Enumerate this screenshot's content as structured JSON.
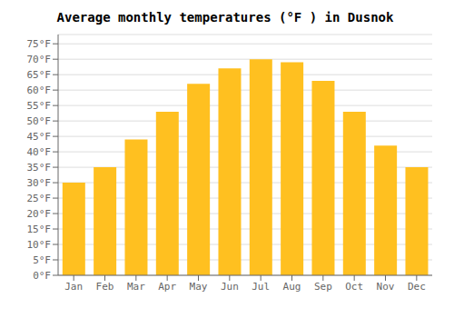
{
  "chart_data": {
    "type": "bar",
    "title": "Average monthly temperatures (°F ) in Dusnok",
    "categories": [
      "Jan",
      "Feb",
      "Mar",
      "Apr",
      "May",
      "Jun",
      "Jul",
      "Aug",
      "Sep",
      "Oct",
      "Nov",
      "Dec"
    ],
    "values": [
      30,
      35,
      44,
      53,
      62,
      67,
      70,
      69,
      63,
      53,
      42,
      35
    ],
    "color": "#FFC020",
    "ylim": [
      0,
      78
    ],
    "yticks": [
      {
        "value": 0,
        "label": "0°F"
      },
      {
        "value": 5,
        "label": "5°F"
      },
      {
        "value": 10,
        "label": "10°F"
      },
      {
        "value": 15,
        "label": "15°F"
      },
      {
        "value": 20,
        "label": "20°F"
      },
      {
        "value": 25,
        "label": "25°F"
      },
      {
        "value": 30,
        "label": "30°F"
      },
      {
        "value": 35,
        "label": "35°F"
      },
      {
        "value": 40,
        "label": "40°F"
      },
      {
        "value": 45,
        "label": "45°F"
      },
      {
        "value": 50,
        "label": "50°F"
      },
      {
        "value": 55,
        "label": "55°F"
      },
      {
        "value": 60,
        "label": "60°F"
      },
      {
        "value": 65,
        "label": "65°F"
      },
      {
        "value": 70,
        "label": "70°F"
      },
      {
        "value": 75,
        "label": "75°F"
      }
    ],
    "grid": true
  }
}
